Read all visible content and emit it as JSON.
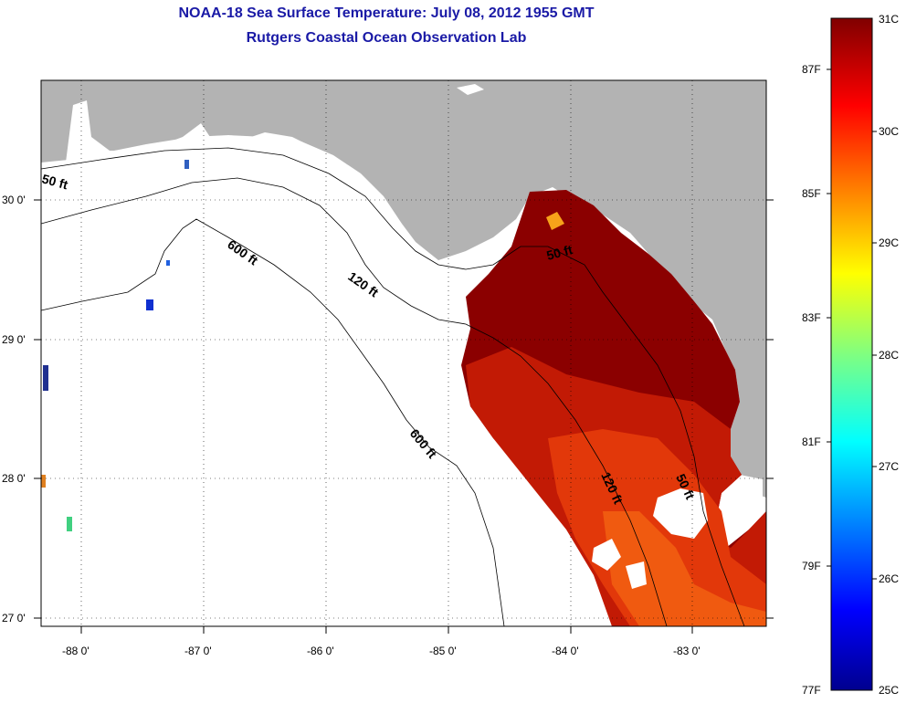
{
  "header": {
    "title": "NOAA-18 Sea Surface Temperature:  July 08, 2012 1955 GMT",
    "subtitle": "Rutgers Coastal Ocean Observation Lab"
  },
  "map": {
    "lat_ticks": [
      "30 0'",
      "29 0'",
      "28 0'",
      "27 0'"
    ],
    "lon_ticks": [
      "-88 0'",
      "-87 0'",
      "-86 0'",
      "-85 0'",
      "-84 0'",
      "-83 0'"
    ],
    "contour_labels": [
      "50 ft",
      "600 ft",
      "120 ft",
      "50 ft",
      "600 ft",
      "120 ft",
      "50 ft"
    ],
    "land_color": "#b3b3b3",
    "ocean_nodata_color": "#ffffff"
  },
  "colorbar": {
    "celsius_labels": [
      "31C",
      "30C",
      "29C",
      "28C",
      "27C",
      "26C",
      "25C"
    ],
    "fahrenheit_labels": [
      "87F",
      "85F",
      "83F",
      "81F",
      "79F",
      "77F"
    ]
  }
}
